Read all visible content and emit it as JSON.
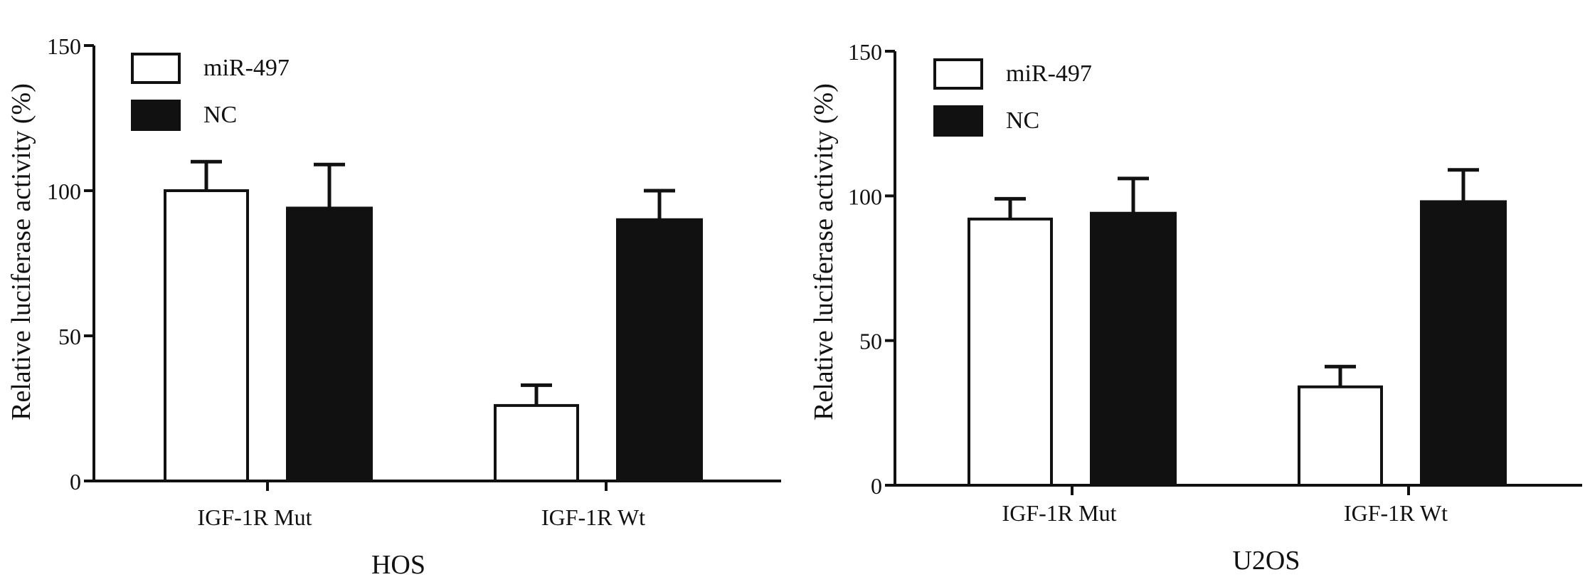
{
  "colors": {
    "axis": "#111111",
    "mir_fill": "#ffffff",
    "nc_fill": "#111111"
  },
  "chart_data": [
    {
      "type": "bar",
      "xlabel": "HOS",
      "ylabel": "Relative luciferase activity (%)",
      "ylim": [
        0,
        150
      ],
      "yticks": [
        0,
        50,
        100,
        150
      ],
      "tick_labels": [
        "0",
        "50",
        "100",
        "150"
      ],
      "categories": [
        "IGF-1R Mut",
        "IGF-1R Wt"
      ],
      "legend_position": "top-left",
      "series": [
        {
          "name": "miR-497",
          "fill": "white",
          "values": [
            100,
            26
          ],
          "error": [
            10,
            7
          ]
        },
        {
          "name": "NC",
          "fill": "black",
          "values": [
            94,
            90
          ],
          "error": [
            15,
            10
          ]
        }
      ]
    },
    {
      "type": "bar",
      "xlabel": "U2OS",
      "ylabel": "Relative luciferase activity (%)",
      "ylim": [
        0,
        150
      ],
      "yticks": [
        0,
        50,
        100,
        150
      ],
      "tick_labels": [
        "0",
        "50",
        "100",
        "150"
      ],
      "categories": [
        "IGF-1R Mut",
        "IGF-1R Wt"
      ],
      "legend_position": "top-left",
      "series": [
        {
          "name": "miR-497",
          "fill": "white",
          "values": [
            92,
            34
          ],
          "error": [
            7,
            7
          ]
        },
        {
          "name": "NC",
          "fill": "black",
          "values": [
            94,
            98
          ],
          "error": [
            12,
            11
          ]
        }
      ]
    }
  ]
}
